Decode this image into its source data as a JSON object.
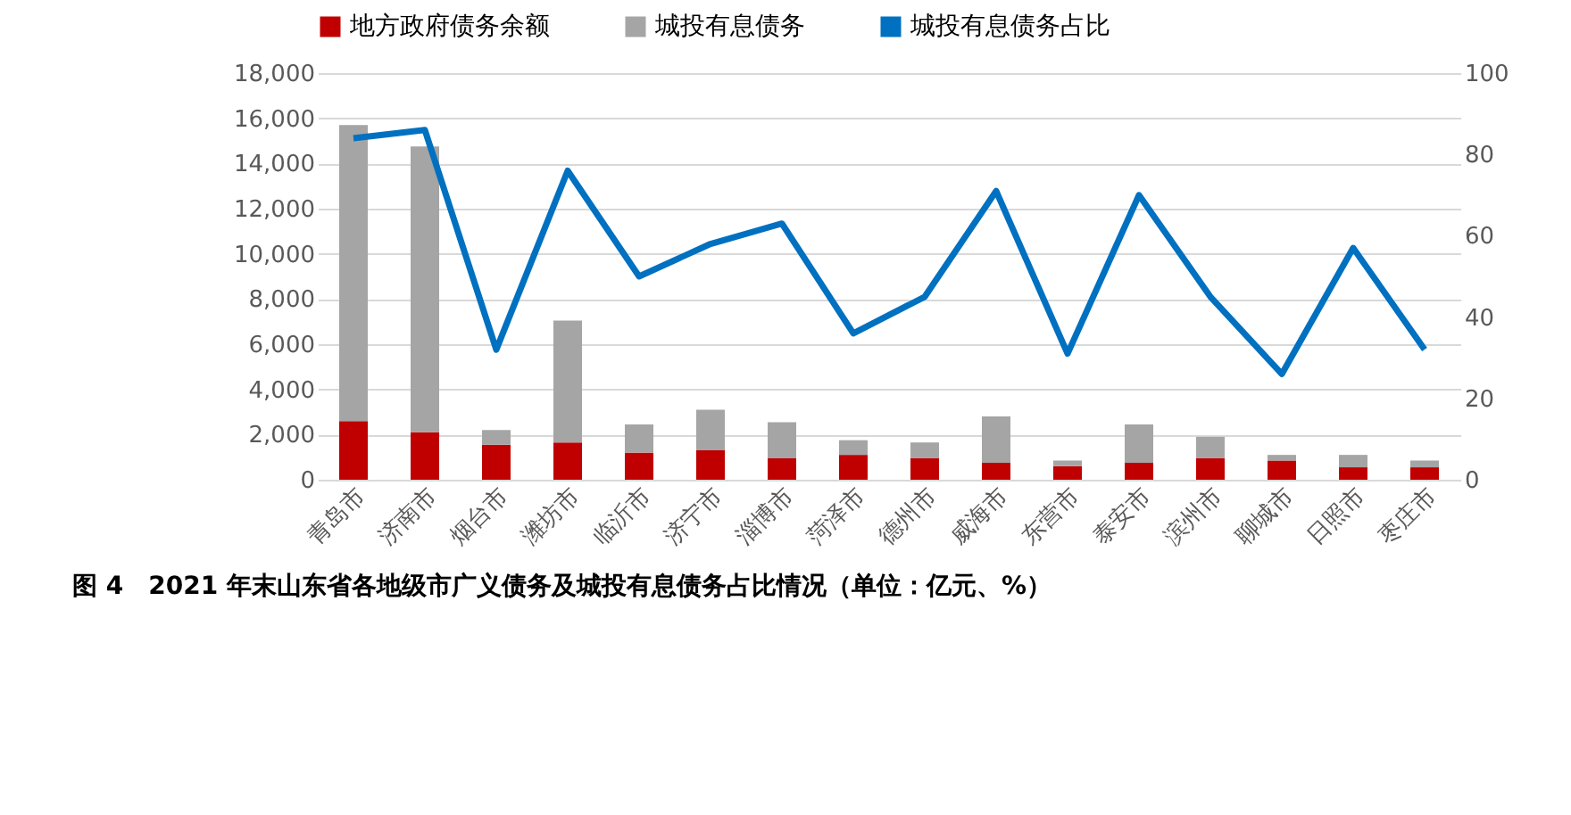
{
  "chart_data": {
    "type": "bar",
    "stacked": true,
    "title": "图 4　2021 年末山东省各地级市广义债务及城投有息债务占比情况（单位：亿元、%）",
    "categories": [
      "青岛市",
      "济南市",
      "烟台市",
      "潍坊市",
      "临沂市",
      "济宁市",
      "淄博市",
      "菏泽市",
      "德州市",
      "威海市",
      "东营市",
      "泰安市",
      "滨州市",
      "聊城市",
      "日照市",
      "枣庄市"
    ],
    "series": [
      {
        "name": "地方政府债务余额",
        "color": "#c00000",
        "values": [
          2600,
          2100,
          1550,
          1650,
          1200,
          1300,
          950,
          1100,
          950,
          750,
          600,
          750,
          950,
          850,
          550,
          550
        ]
      },
      {
        "name": "城投有息债务",
        "color": "#a5a5a5",
        "values": [
          13100,
          12650,
          650,
          5400,
          1250,
          1800,
          1600,
          650,
          700,
          2050,
          250,
          1700,
          950,
          250,
          550,
          300
        ]
      },
      {
        "name": "城投有息债务占比",
        "type": "line",
        "axis": "y2",
        "color": "#0070c0",
        "values": [
          84,
          86,
          32,
          76,
          50,
          58,
          63,
          36,
          45,
          71,
          31,
          70,
          45,
          26,
          57,
          32
        ]
      }
    ],
    "ylim": [
      0,
      18000
    ],
    "yticks": [
      0,
      {
        "value": 2000,
        "label": "2,000"
      },
      {
        "value": 4000,
        "label": "4,000"
      },
      {
        "value": 6000,
        "label": "6,000"
      },
      {
        "value": 8000,
        "label": "8,000"
      },
      {
        "value": 10000,
        "label": "10,000"
      },
      {
        "value": 12000,
        "label": "12,000"
      },
      {
        "value": 14000,
        "label": "14,000"
      },
      {
        "value": 16000,
        "label": "16,000"
      },
      {
        "value": 18000,
        "label": "18,000"
      }
    ],
    "y2lim": [
      0,
      100
    ],
    "y2ticks": [
      0,
      20,
      40,
      60,
      80,
      100
    ],
    "grid": "y",
    "legend": "top",
    "marker": "none",
    "line_style": "solid"
  }
}
